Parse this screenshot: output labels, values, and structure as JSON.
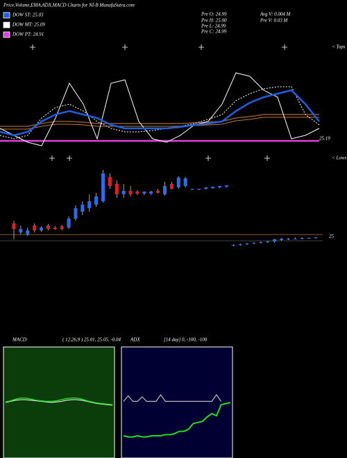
{
  "header": {
    "title": "Price,Volume,EMA,ADX,MACD Charts for NI-B MunafaSutra.com",
    "legend": [
      {
        "label": "DOW ST: 25.03",
        "color": "#1f5fe0"
      },
      {
        "label": "DOW MT: 25.09",
        "color": "#ffffff"
      },
      {
        "label": "DOW PT: 24.91",
        "color": "#e040e0"
      }
    ],
    "stats": [
      "Pre  O: 24.99",
      "Avg V: 0.004  M",
      "Pre  H: 25.00",
      "Pre   V: 0.03  M",
      "Pre  L: 24.99",
      "Pre  C: 24.99"
    ]
  },
  "chart_data": [
    {
      "type": "line",
      "annotations": [
        "< Tops",
        "25.19"
      ],
      "ylim": [
        24.5,
        25.85
      ],
      "series": [
        {
          "color": "#8b5a2b",
          "width": 1.5,
          "values": [
            24.98,
            24.98,
            24.98,
            25.02,
            25.05,
            25.05,
            25.04,
            25.02,
            25.02,
            25.02,
            25.02,
            25.02,
            25.02,
            25.02,
            25.03,
            25.04,
            25.05,
            25.1,
            25.12,
            25.15,
            25.15,
            25.15,
            25.15,
            25.15
          ]
        },
        {
          "color": "#c07a30",
          "width": 1,
          "values": [
            24.94,
            24.94,
            24.94,
            24.98,
            25.01,
            25.01,
            25.0,
            24.98,
            24.98,
            24.98,
            24.98,
            24.98,
            24.98,
            24.98,
            24.99,
            25.0,
            25.01,
            25.06,
            25.08,
            25.11,
            25.11,
            25.11,
            25.11,
            25.11
          ]
        },
        {
          "color": "#e040e0",
          "width": 2.5,
          "values": [
            24.77,
            24.77,
            24.77,
            24.77,
            24.77,
            24.77,
            24.77,
            24.77,
            24.77,
            24.77,
            24.77,
            24.77,
            24.77,
            24.77,
            24.77,
            24.77,
            24.77,
            24.77,
            24.77,
            24.77,
            24.77,
            24.77,
            24.77,
            24.77
          ]
        },
        {
          "color": "#ffffff",
          "width": 1,
          "dashed": true,
          "values": [
            24.85,
            24.8,
            24.85,
            25.1,
            25.25,
            25.3,
            25.2,
            25.05,
            24.95,
            24.9,
            24.9,
            24.92,
            24.95,
            24.98,
            25.02,
            25.08,
            25.15,
            25.35,
            25.45,
            25.52,
            25.55,
            25.55,
            25.15,
            25.0
          ]
        },
        {
          "color": "#ffffff",
          "width": 1,
          "values": [
            24.95,
            24.85,
            24.75,
            24.7,
            25.1,
            25.6,
            25.3,
            24.8,
            25.6,
            25.65,
            25.05,
            24.8,
            24.75,
            24.85,
            25.0,
            25.05,
            25.3,
            25.75,
            25.7,
            25.5,
            25.4,
            24.8,
            24.85,
            24.95
          ]
        },
        {
          "color": "#1f5fe0",
          "width": 2.5,
          "values": [
            24.9,
            24.85,
            24.9,
            25.05,
            25.15,
            25.2,
            25.15,
            25.1,
            25.0,
            24.95,
            24.95,
            24.95,
            24.95,
            24.97,
            25.0,
            25.02,
            25.05,
            25.2,
            25.32,
            25.4,
            25.45,
            25.5,
            25.3,
            25.05
          ]
        }
      ]
    },
    {
      "type": "candlestick",
      "annotations": [
        "< Lows",
        "25"
      ],
      "ylim": [
        24.0,
        25.3
      ],
      "up_color": "#2a6de8",
      "down_color": "#e02020",
      "open": [
        24.48,
        24.35,
        24.32,
        24.45,
        24.38,
        24.45,
        24.42,
        24.44,
        24.42,
        24.55,
        24.65,
        24.7,
        24.75,
        24.8,
        25.15,
        25.05,
        24.9,
        24.95,
        24.94,
        24.91,
        24.91,
        24.95,
        24.9,
        25.05,
        25.0,
        25.02,
        24.97,
        24.97,
        24.98,
        24.99,
        25.0,
        25.01,
        24.16,
        24.17,
        24.18,
        24.19,
        24.2,
        24.21,
        24.22,
        24.24,
        24.25,
        24.26,
        24.26,
        24.27,
        24.27
      ],
      "high": [
        24.52,
        24.45,
        24.42,
        24.48,
        24.44,
        24.47,
        24.44,
        24.46,
        24.58,
        24.74,
        24.8,
        24.9,
        24.92,
        25.25,
        25.2,
        25.1,
        25.05,
        25.02,
        24.96,
        24.94,
        24.95,
        24.98,
        25.08,
        25.08,
        25.16,
        25.15,
        24.98,
        24.98,
        25.0,
        25.01,
        25.02,
        25.03,
        24.18,
        24.19,
        24.2,
        24.21,
        24.22,
        24.23,
        24.26,
        24.27,
        24.27,
        24.28,
        24.28,
        24.28,
        24.28
      ],
      "low": [
        24.25,
        24.32,
        24.3,
        24.35,
        24.36,
        24.38,
        24.39,
        24.38,
        24.4,
        24.52,
        24.6,
        24.65,
        24.72,
        24.78,
        24.98,
        24.85,
        24.85,
        24.87,
        24.89,
        24.89,
        24.89,
        24.91,
        24.88,
        24.97,
        24.98,
        25.0,
        24.96,
        24.96,
        24.97,
        24.98,
        24.99,
        25.0,
        24.15,
        24.16,
        24.17,
        24.18,
        24.19,
        24.2,
        24.2,
        24.23,
        24.24,
        24.25,
        24.25,
        24.26,
        24.26
      ],
      "close": [
        24.4,
        24.4,
        24.38,
        24.38,
        24.42,
        24.4,
        24.4,
        24.4,
        24.55,
        24.7,
        24.75,
        24.8,
        24.87,
        25.2,
        25.02,
        24.9,
        24.95,
        24.9,
        24.91,
        24.94,
        24.94,
        24.92,
        25.02,
        24.98,
        25.14,
        25.13,
        24.98,
        24.98,
        25.0,
        25.01,
        25.02,
        25.03,
        24.17,
        24.18,
        24.19,
        24.2,
        24.21,
        24.22,
        24.25,
        24.26,
        24.26,
        24.26,
        24.27,
        24.27,
        24.28
      ]
    },
    {
      "type": "line",
      "title": "MACD:",
      "subtitle": "( 12,26,9 ) 25.01,  25.05,  -0.04",
      "ylim": [
        -1,
        1
      ],
      "background": "#0b3d0b",
      "border": "#ffffff",
      "series": [
        {
          "color": "#ffffff",
          "width": 1,
          "values": [
            0,
            0.02,
            0.04,
            0.05,
            0.05,
            0.04,
            0.03,
            0.02,
            0.01,
            0,
            0.01,
            0.02,
            0.04,
            0.05,
            0.05,
            0.04,
            0.02,
            0,
            -0.02,
            -0.03,
            -0.04,
            -0.05
          ]
        },
        {
          "color": "#22dd22",
          "width": 1.5,
          "values": [
            0.01,
            0.03,
            0.06,
            0.08,
            0.08,
            0.06,
            0.04,
            0.03,
            0.02,
            0.02,
            0.03,
            0.05,
            0.07,
            0.08,
            0.08,
            0.06,
            0.03,
            0.01,
            -0.01,
            -0.02,
            -0.03,
            -0.04
          ]
        }
      ]
    },
    {
      "type": "line",
      "title": "ADX",
      "subtitle": "[14  day] 0,  -100,  -100",
      "ylim": [
        0,
        100
      ],
      "background": "#000033",
      "border": "#ffffff",
      "series": [
        {
          "color": "#bbbbbb",
          "width": 1.2,
          "values": [
            51,
            56,
            51,
            51,
            55,
            51,
            51,
            51,
            57,
            51,
            51,
            51,
            51,
            51,
            51,
            51,
            51,
            51,
            51,
            51,
            57,
            51
          ]
        },
        {
          "color": "#22dd22",
          "width": 2,
          "values": [
            20,
            19,
            19,
            20,
            19,
            19,
            20,
            20,
            20,
            21,
            21,
            22,
            24,
            24,
            26,
            31,
            32,
            33,
            37,
            40,
            38,
            48,
            49,
            50
          ]
        }
      ]
    }
  ]
}
